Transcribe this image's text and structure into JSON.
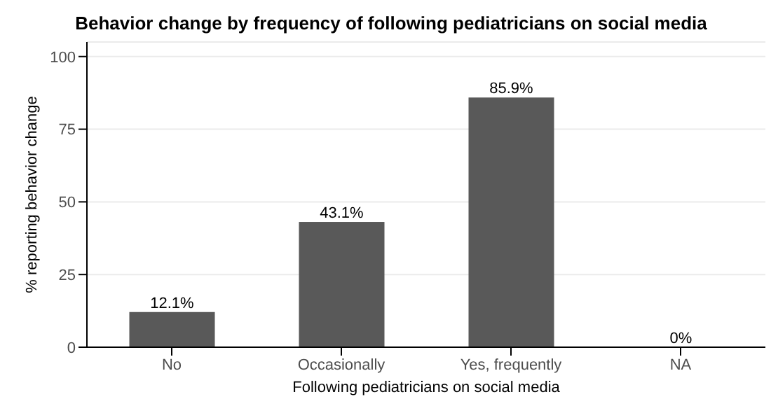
{
  "chart_data": {
    "type": "bar",
    "title": "Behavior change by frequency of following pediatricians on social media",
    "xlabel": "Following pediatricians on social media",
    "ylabel": "% reporting behavior change",
    "categories": [
      "No",
      "Occasionally",
      "Yes, frequently",
      "NA"
    ],
    "values": [
      12.1,
      43.1,
      85.9,
      0
    ],
    "value_labels": [
      "12.1%",
      "43.1%",
      "85.9%",
      "0%"
    ],
    "color": "#595959",
    "ylim": [
      0,
      105
    ],
    "yticks": [
      0,
      25,
      50,
      75,
      100
    ],
    "grid": "y"
  }
}
